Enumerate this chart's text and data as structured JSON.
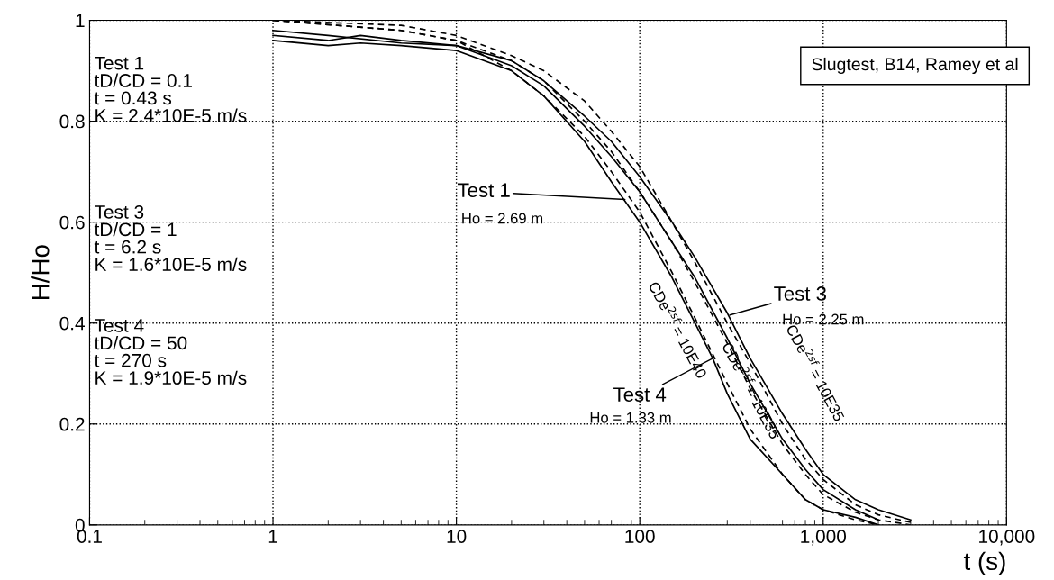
{
  "chart_data": {
    "type": "line",
    "title": "Slugtest, B14, Ramey et al",
    "xlabel": "t (s)",
    "ylabel": "H/Ho",
    "log": "x",
    "grid": true,
    "marker": "none",
    "xlim": [
      0.1,
      10000
    ],
    "xticks": [
      0.1,
      1,
      10,
      100,
      {
        "value": 1000,
        "label": "1,000"
      },
      {
        "value": 10000,
        "label": "10,000"
      }
    ],
    "ylim": [
      0,
      1
    ],
    "yticks": [
      0,
      0.2,
      0.4,
      0.6,
      0.8,
      1
    ],
    "series": [
      {
        "color": "#000000",
        "line_style": "solid",
        "x": [
          1,
          2,
          3,
          5,
          10,
          20,
          30,
          50,
          70,
          100,
          150,
          200,
          250,
          300,
          400,
          600,
          800,
          1000,
          1500,
          2000
        ],
        "values": [
          0.96,
          0.95,
          0.955,
          0.95,
          0.94,
          0.9,
          0.85,
          0.76,
          0.68,
          0.6,
          0.49,
          0.4,
          0.33,
          0.26,
          0.17,
          0.1,
          0.05,
          0.03,
          0.015,
          0.0
        ]
      },
      {
        "color": "#000000",
        "line_style": "solid",
        "x": [
          1,
          2,
          5,
          10,
          20,
          30,
          50,
          70,
          100,
          150,
          200,
          300,
          400,
          600,
          800,
          1000,
          1500,
          2000
        ],
        "values": [
          0.98,
          0.97,
          0.955,
          0.95,
          0.91,
          0.87,
          0.79,
          0.73,
          0.66,
          0.56,
          0.49,
          0.37,
          0.28,
          0.17,
          0.11,
          0.07,
          0.03,
          0.01
        ]
      },
      {
        "color": "#000000",
        "line_style": "solid",
        "x": [
          1,
          2,
          3,
          5,
          10,
          20,
          30,
          50,
          70,
          100,
          150,
          200,
          300,
          400,
          600,
          800,
          1000,
          1500,
          2000,
          3000
        ],
        "values": [
          0.97,
          0.96,
          0.97,
          0.96,
          0.95,
          0.92,
          0.88,
          0.81,
          0.76,
          0.69,
          0.6,
          0.53,
          0.42,
          0.33,
          0.22,
          0.15,
          0.1,
          0.05,
          0.03,
          0.01
        ]
      },
      {
        "color": "#000000",
        "line_style": "dashed",
        "x": [
          1,
          5,
          10,
          20,
          30,
          50,
          70,
          100,
          150,
          200,
          300,
          400,
          600,
          800,
          1000,
          1500,
          2000
        ],
        "values": [
          1,
          0.98,
          0.96,
          0.9,
          0.85,
          0.77,
          0.7,
          0.62,
          0.5,
          0.41,
          0.28,
          0.19,
          0.1,
          0.05,
          0.03,
          0.01,
          0
        ]
      },
      {
        "color": "#000000",
        "line_style": "dashed",
        "x": [
          1,
          5,
          10,
          20,
          30,
          50,
          70,
          100,
          150,
          200,
          300,
          400,
          600,
          800,
          1000,
          1500,
          2000,
          3000
        ],
        "values": [
          1,
          0.98,
          0.96,
          0.92,
          0.88,
          0.8,
          0.74,
          0.66,
          0.56,
          0.48,
          0.36,
          0.27,
          0.16,
          0.1,
          0.06,
          0.025,
          0.01,
          0
        ]
      },
      {
        "color": "#000000",
        "line_style": "dashed",
        "x": [
          1,
          5,
          10,
          20,
          30,
          50,
          70,
          100,
          150,
          200,
          300,
          400,
          600,
          800,
          1000,
          1500,
          2000,
          3000
        ],
        "values": [
          1,
          0.99,
          0.97,
          0.93,
          0.9,
          0.84,
          0.78,
          0.71,
          0.6,
          0.52,
          0.4,
          0.32,
          0.2,
          0.13,
          0.09,
          0.04,
          0.02,
          0.005
        ]
      }
    ],
    "annotations": [
      {
        "text": "Test 1",
        "x": 83,
        "y": 0.645
      },
      "Ho = 2.69 m",
      {
        "text": "Test 3",
        "x": 310,
        "y": 0.416
      },
      "Ho = 2.25 m",
      {
        "text": "Test 4",
        "x": 250,
        "y": 0.33
      },
      "Ho = 1.33 m",
      "CDe$^{2sf}$ = 10E40",
      "CDe$^{2sf}$ = 10E35",
      "CDe$^{2sf}$ = 10E35",
      "Test 1\ntD/CD = 0.1\nt = 0.43 s\nK = 2.4*10E-5 m/s",
      "Test 3\ntD/CD = 1\nt = 6.2 s\nK = 1.6*10E-5 m/s",
      "Test 4\ntD/CD = 50\nt = 270 s\nK = 1.9*10E-5 m/s"
    ]
  }
}
